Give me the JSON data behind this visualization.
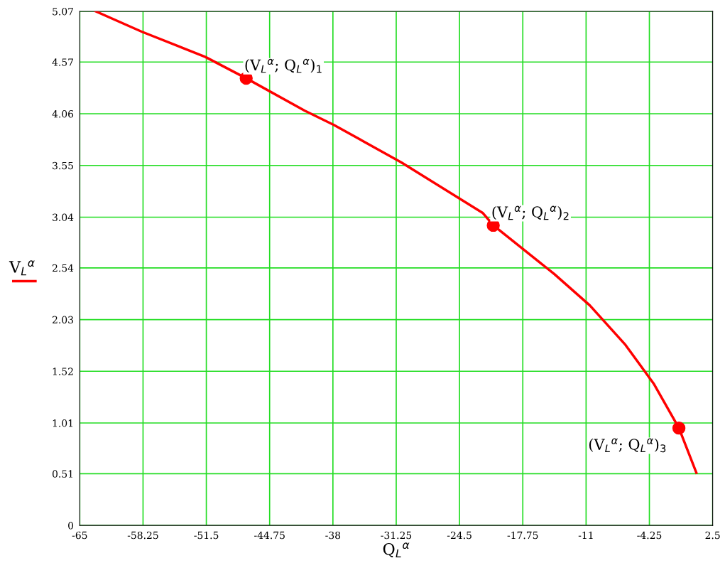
{
  "chart_data": {
    "type": "line",
    "xlabel": "Q$_{L}$$^{α}$",
    "ylabel": "V$_{L}$$^{α}$",
    "series": [
      {
        "color": "#ff0000",
        "x": [
          -63.3,
          -58.4,
          -51.6,
          -47.25,
          -41.0,
          -37.9,
          -30.7,
          -22.0,
          -20.9,
          -14.4,
          -10.6,
          -6.8,
          -3.8,
          -1.1,
          0.76
        ],
        "values": [
          5.07,
          4.87,
          4.62,
          4.41,
          4.09,
          3.95,
          3.58,
          3.08,
          2.96,
          2.48,
          2.17,
          1.78,
          1.4,
          0.96,
          0.52
        ]
      },
      {
        "type": "scatter",
        "color": "#ff0000",
        "marker": "circle",
        "x": [
          -47.25,
          -20.9,
          -1.1
        ],
        "values": [
          4.41,
          2.96,
          0.96
        ]
      }
    ],
    "annotations": [
      {
        "text": "(V$_{L}$$^{α}$; Q$_{L}$$^{α}$)$_{1}$",
        "x": -47.25,
        "y": 4.41
      },
      {
        "text": "(V$_{L}$$^{α}$; Q$_{L}$$^{α}$)$_{2}$",
        "x": -20.9,
        "y": 2.96
      },
      {
        "text": "(V$_{L}$$^{α}$; Q$_{L}$$^{α}$)$_{3}$",
        "x": -1.1,
        "y": 0.96
      }
    ],
    "xlim": [
      -65,
      2.5
    ],
    "xticks": [
      -65,
      -58.25,
      -51.5,
      -44.75,
      -38,
      -31.25,
      -24.5,
      -17.75,
      -11,
      -4.25,
      2.5
    ],
    "ylim": [
      0,
      5.07
    ],
    "yticks": [
      0,
      0.51,
      1.01,
      1.52,
      2.03,
      2.54,
      3.04,
      3.55,
      4.06,
      4.57,
      5.07
    ],
    "grid": true,
    "legend": false
  }
}
